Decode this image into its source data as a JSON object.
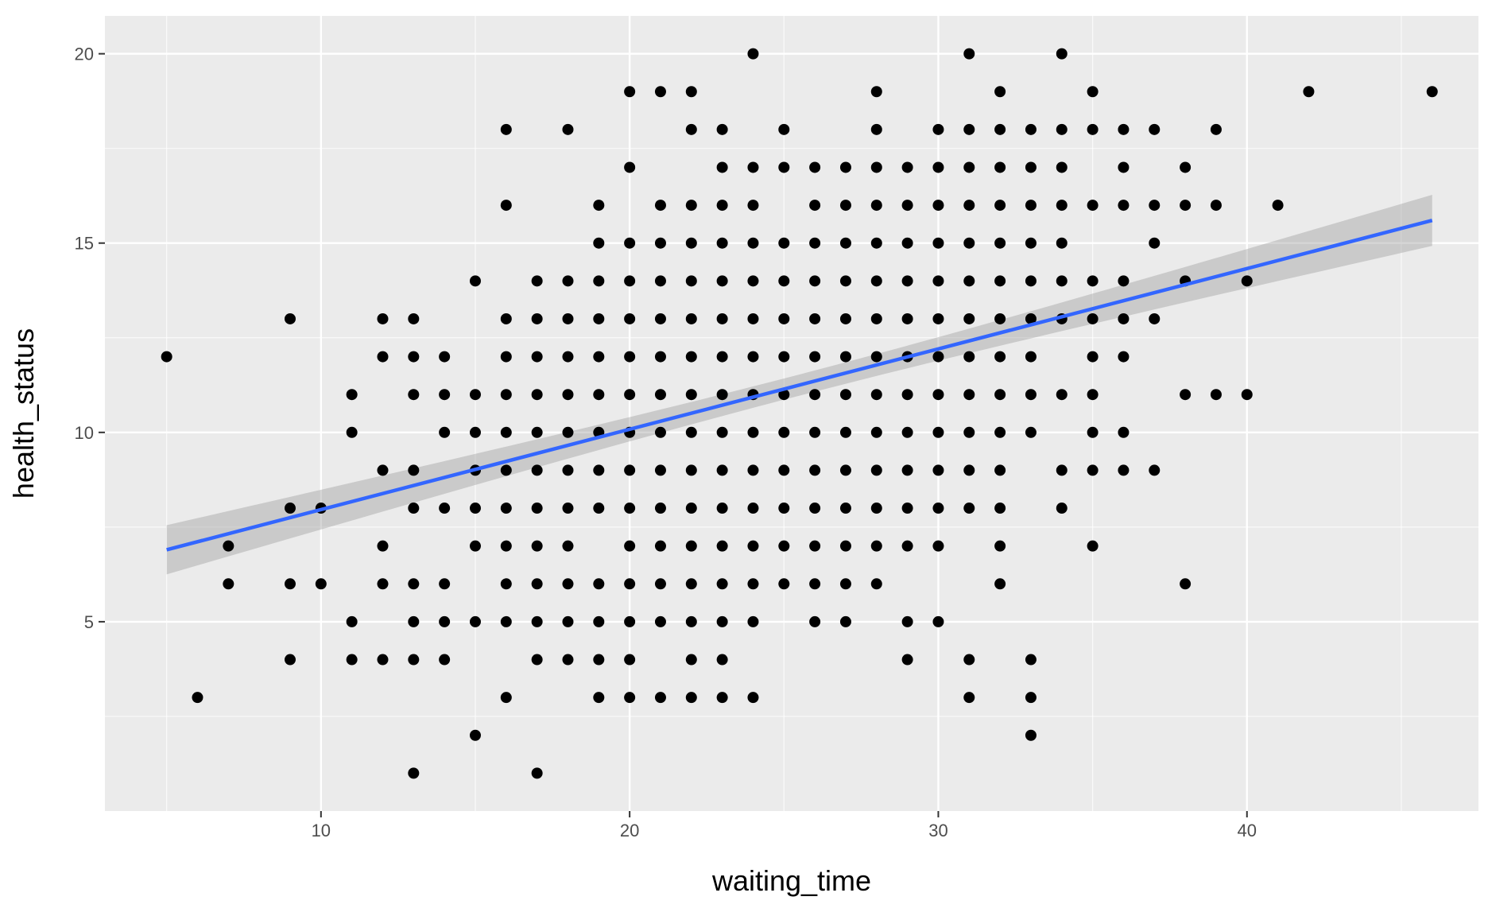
{
  "chart_data": {
    "type": "scatter",
    "xlabel": "waiting_time",
    "ylabel": "health_status",
    "xlim": [
      3,
      47.5
    ],
    "ylim": [
      0,
      21
    ],
    "x_ticks": [
      10,
      20,
      30,
      40
    ],
    "y_ticks": [
      5,
      10,
      15,
      20
    ],
    "grid": true,
    "colors": {
      "panel_background": "#ebebeb",
      "grid_major": "#ffffff",
      "points": "#000000",
      "trend_line": "#3366ff",
      "confidence_band": "#999999"
    },
    "points": [
      [
        5,
        12
      ],
      [
        6,
        3
      ],
      [
        7,
        7
      ],
      [
        7,
        6
      ],
      [
        9,
        13
      ],
      [
        9,
        8
      ],
      [
        9,
        6
      ],
      [
        9,
        4
      ],
      [
        10,
        8
      ],
      [
        10,
        6
      ],
      [
        11,
        11
      ],
      [
        11,
        10
      ],
      [
        11,
        5
      ],
      [
        11,
        4
      ],
      [
        12,
        13
      ],
      [
        12,
        12
      ],
      [
        12,
        9
      ],
      [
        12,
        7
      ],
      [
        12,
        6
      ],
      [
        12,
        4
      ],
      [
        13,
        13
      ],
      [
        13,
        12
      ],
      [
        13,
        11
      ],
      [
        13,
        9
      ],
      [
        13,
        8
      ],
      [
        13,
        6
      ],
      [
        13,
        5
      ],
      [
        13,
        4
      ],
      [
        13,
        1
      ],
      [
        14,
        12
      ],
      [
        14,
        11
      ],
      [
        14,
        10
      ],
      [
        14,
        8
      ],
      [
        14,
        6
      ],
      [
        14,
        5
      ],
      [
        14,
        4
      ],
      [
        15,
        14
      ],
      [
        15,
        11
      ],
      [
        15,
        10
      ],
      [
        15,
        9
      ],
      [
        15,
        8
      ],
      [
        15,
        7
      ],
      [
        15,
        5
      ],
      [
        15,
        2
      ],
      [
        16,
        18
      ],
      [
        16,
        16
      ],
      [
        16,
        13
      ],
      [
        16,
        12
      ],
      [
        16,
        11
      ],
      [
        16,
        10
      ],
      [
        16,
        9
      ],
      [
        16,
        8
      ],
      [
        16,
        7
      ],
      [
        16,
        6
      ],
      [
        16,
        5
      ],
      [
        16,
        3
      ],
      [
        17,
        14
      ],
      [
        17,
        13
      ],
      [
        17,
        12
      ],
      [
        17,
        11
      ],
      [
        17,
        10
      ],
      [
        17,
        9
      ],
      [
        17,
        8
      ],
      [
        17,
        7
      ],
      [
        17,
        6
      ],
      [
        17,
        5
      ],
      [
        17,
        4
      ],
      [
        17,
        1
      ],
      [
        18,
        18
      ],
      [
        18,
        14
      ],
      [
        18,
        13
      ],
      [
        18,
        12
      ],
      [
        18,
        11
      ],
      [
        18,
        10
      ],
      [
        18,
        9
      ],
      [
        18,
        8
      ],
      [
        18,
        7
      ],
      [
        18,
        6
      ],
      [
        18,
        5
      ],
      [
        18,
        4
      ],
      [
        19,
        16
      ],
      [
        19,
        15
      ],
      [
        19,
        14
      ],
      [
        19,
        13
      ],
      [
        19,
        12
      ],
      [
        19,
        11
      ],
      [
        19,
        10
      ],
      [
        19,
        9
      ],
      [
        19,
        8
      ],
      [
        19,
        6
      ],
      [
        19,
        5
      ],
      [
        19,
        4
      ],
      [
        19,
        3
      ],
      [
        20,
        19
      ],
      [
        20,
        17
      ],
      [
        20,
        15
      ],
      [
        20,
        14
      ],
      [
        20,
        13
      ],
      [
        20,
        12
      ],
      [
        20,
        11
      ],
      [
        20,
        10
      ],
      [
        20,
        9
      ],
      [
        20,
        8
      ],
      [
        20,
        7
      ],
      [
        20,
        6
      ],
      [
        20,
        5
      ],
      [
        20,
        4
      ],
      [
        20,
        3
      ],
      [
        21,
        19
      ],
      [
        21,
        16
      ],
      [
        21,
        15
      ],
      [
        21,
        14
      ],
      [
        21,
        13
      ],
      [
        21,
        12
      ],
      [
        21,
        11
      ],
      [
        21,
        10
      ],
      [
        21,
        9
      ],
      [
        21,
        8
      ],
      [
        21,
        7
      ],
      [
        21,
        6
      ],
      [
        21,
        5
      ],
      [
        21,
        3
      ],
      [
        22,
        19
      ],
      [
        22,
        18
      ],
      [
        22,
        16
      ],
      [
        22,
        15
      ],
      [
        22,
        14
      ],
      [
        22,
        13
      ],
      [
        22,
        12
      ],
      [
        22,
        11
      ],
      [
        22,
        10
      ],
      [
        22,
        9
      ],
      [
        22,
        8
      ],
      [
        22,
        7
      ],
      [
        22,
        6
      ],
      [
        22,
        5
      ],
      [
        22,
        4
      ],
      [
        22,
        3
      ],
      [
        23,
        18
      ],
      [
        23,
        17
      ],
      [
        23,
        16
      ],
      [
        23,
        15
      ],
      [
        23,
        14
      ],
      [
        23,
        13
      ],
      [
        23,
        12
      ],
      [
        23,
        11
      ],
      [
        23,
        10
      ],
      [
        23,
        9
      ],
      [
        23,
        8
      ],
      [
        23,
        7
      ],
      [
        23,
        6
      ],
      [
        23,
        5
      ],
      [
        23,
        4
      ],
      [
        23,
        3
      ],
      [
        24,
        20
      ],
      [
        24,
        17
      ],
      [
        24,
        16
      ],
      [
        24,
        15
      ],
      [
        24,
        14
      ],
      [
        24,
        13
      ],
      [
        24,
        12
      ],
      [
        24,
        11
      ],
      [
        24,
        10
      ],
      [
        24,
        9
      ],
      [
        24,
        8
      ],
      [
        24,
        7
      ],
      [
        24,
        6
      ],
      [
        24,
        5
      ],
      [
        24,
        3
      ],
      [
        25,
        18
      ],
      [
        25,
        17
      ],
      [
        25,
        15
      ],
      [
        25,
        14
      ],
      [
        25,
        13
      ],
      [
        25,
        12
      ],
      [
        25,
        11
      ],
      [
        25,
        10
      ],
      [
        25,
        9
      ],
      [
        25,
        8
      ],
      [
        25,
        7
      ],
      [
        25,
        6
      ],
      [
        26,
        17
      ],
      [
        26,
        16
      ],
      [
        26,
        15
      ],
      [
        26,
        14
      ],
      [
        26,
        13
      ],
      [
        26,
        12
      ],
      [
        26,
        11
      ],
      [
        26,
        10
      ],
      [
        26,
        9
      ],
      [
        26,
        8
      ],
      [
        26,
        7
      ],
      [
        26,
        6
      ],
      [
        26,
        5
      ],
      [
        27,
        17
      ],
      [
        27,
        16
      ],
      [
        27,
        15
      ],
      [
        27,
        14
      ],
      [
        27,
        13
      ],
      [
        27,
        12
      ],
      [
        27,
        11
      ],
      [
        27,
        10
      ],
      [
        27,
        9
      ],
      [
        27,
        8
      ],
      [
        27,
        7
      ],
      [
        27,
        6
      ],
      [
        27,
        5
      ],
      [
        28,
        19
      ],
      [
        28,
        18
      ],
      [
        28,
        17
      ],
      [
        28,
        16
      ],
      [
        28,
        15
      ],
      [
        28,
        14
      ],
      [
        28,
        13
      ],
      [
        28,
        12
      ],
      [
        28,
        11
      ],
      [
        28,
        10
      ],
      [
        28,
        9
      ],
      [
        28,
        8
      ],
      [
        28,
        7
      ],
      [
        28,
        6
      ],
      [
        29,
        17
      ],
      [
        29,
        16
      ],
      [
        29,
        15
      ],
      [
        29,
        14
      ],
      [
        29,
        13
      ],
      [
        29,
        12
      ],
      [
        29,
        11
      ],
      [
        29,
        10
      ],
      [
        29,
        9
      ],
      [
        29,
        8
      ],
      [
        29,
        7
      ],
      [
        29,
        5
      ],
      [
        29,
        4
      ],
      [
        30,
        18
      ],
      [
        30,
        17
      ],
      [
        30,
        16
      ],
      [
        30,
        15
      ],
      [
        30,
        14
      ],
      [
        30,
        13
      ],
      [
        30,
        12
      ],
      [
        30,
        11
      ],
      [
        30,
        10
      ],
      [
        30,
        9
      ],
      [
        30,
        8
      ],
      [
        30,
        7
      ],
      [
        30,
        5
      ],
      [
        31,
        20
      ],
      [
        31,
        18
      ],
      [
        31,
        17
      ],
      [
        31,
        16
      ],
      [
        31,
        15
      ],
      [
        31,
        14
      ],
      [
        31,
        13
      ],
      [
        31,
        12
      ],
      [
        31,
        11
      ],
      [
        31,
        10
      ],
      [
        31,
        9
      ],
      [
        31,
        8
      ],
      [
        31,
        4
      ],
      [
        31,
        3
      ],
      [
        32,
        19
      ],
      [
        32,
        18
      ],
      [
        32,
        17
      ],
      [
        32,
        16
      ],
      [
        32,
        15
      ],
      [
        32,
        14
      ],
      [
        32,
        13
      ],
      [
        32,
        12
      ],
      [
        32,
        11
      ],
      [
        32,
        10
      ],
      [
        32,
        9
      ],
      [
        32,
        8
      ],
      [
        32,
        7
      ],
      [
        32,
        6
      ],
      [
        33,
        18
      ],
      [
        33,
        17
      ],
      [
        33,
        16
      ],
      [
        33,
        15
      ],
      [
        33,
        14
      ],
      [
        33,
        13
      ],
      [
        33,
        12
      ],
      [
        33,
        11
      ],
      [
        33,
        10
      ],
      [
        33,
        4
      ],
      [
        33,
        3
      ],
      [
        33,
        2
      ],
      [
        34,
        20
      ],
      [
        34,
        18
      ],
      [
        34,
        17
      ],
      [
        34,
        16
      ],
      [
        34,
        15
      ],
      [
        34,
        14
      ],
      [
        34,
        13
      ],
      [
        34,
        11
      ],
      [
        34,
        9
      ],
      [
        34,
        8
      ],
      [
        35,
        19
      ],
      [
        35,
        18
      ],
      [
        35,
        16
      ],
      [
        35,
        14
      ],
      [
        35,
        13
      ],
      [
        35,
        12
      ],
      [
        35,
        11
      ],
      [
        35,
        10
      ],
      [
        35,
        9
      ],
      [
        35,
        7
      ],
      [
        36,
        18
      ],
      [
        36,
        17
      ],
      [
        36,
        16
      ],
      [
        36,
        14
      ],
      [
        36,
        13
      ],
      [
        36,
        12
      ],
      [
        36,
        10
      ],
      [
        36,
        9
      ],
      [
        37,
        18
      ],
      [
        37,
        16
      ],
      [
        37,
        15
      ],
      [
        37,
        13
      ],
      [
        37,
        9
      ],
      [
        38,
        17
      ],
      [
        38,
        16
      ],
      [
        38,
        14
      ],
      [
        38,
        11
      ],
      [
        38,
        6
      ],
      [
        39,
        18
      ],
      [
        39,
        16
      ],
      [
        39,
        11
      ],
      [
        40,
        14
      ],
      [
        40,
        11
      ],
      [
        41,
        16
      ],
      [
        42,
        19
      ],
      [
        46,
        19
      ]
    ],
    "trend_line": {
      "method": "linear",
      "x": [
        5,
        46
      ],
      "y": [
        6.9,
        15.6
      ],
      "ci_lower": [
        6.25,
        14.95
      ],
      "ci_upper": [
        7.55,
        16.3
      ],
      "ci_mid_x": 25.5,
      "ci_mid_half_width": 0.28
    }
  }
}
